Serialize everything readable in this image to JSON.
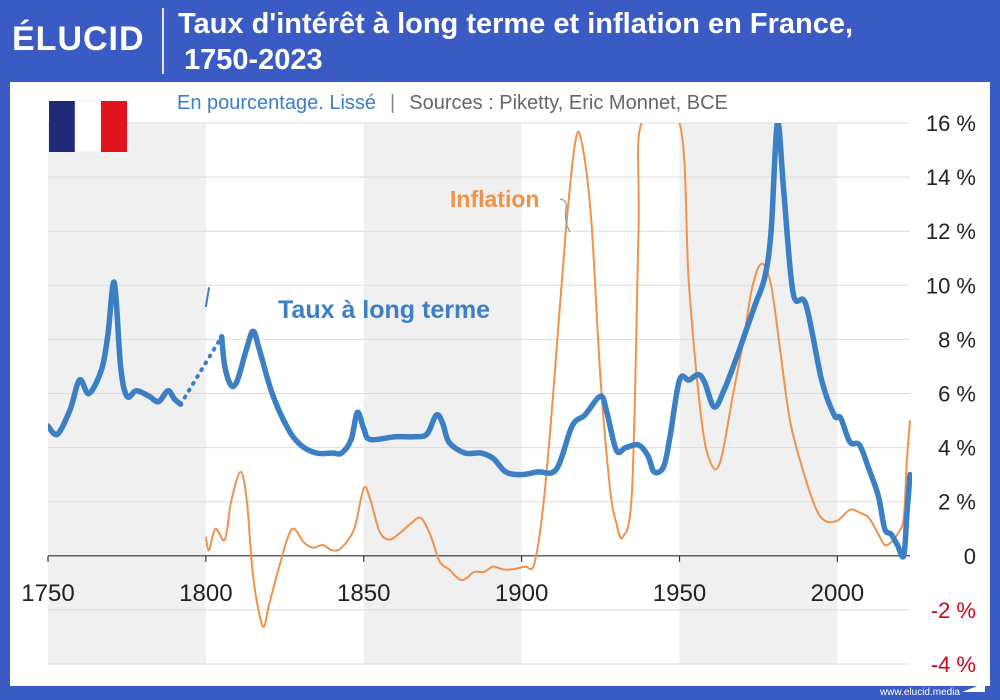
{
  "brand": {
    "logo_text": "ÉLUCID",
    "footer": "www.elucid.media"
  },
  "header": {
    "title_line1": "Taux d'intérêt à long terme et inflation en France,",
    "title_line2": "1750-2023"
  },
  "chart_data": {
    "type": "line",
    "title": "Taux d'intérêt à long terme et inflation en France, 1750-2023",
    "subtitle": "En pourcentage. Lissé",
    "subtitle_sep": "|",
    "sources": "Sources : Piketty, Eric Monnet, BCE",
    "x_ticks": [
      "1750",
      "1800",
      "1850",
      "1900",
      "1950",
      "2000"
    ],
    "y_ticks": [
      "16 %",
      "14 %",
      "12 %",
      "10 %",
      "8 %",
      "6 %",
      "4 %",
      "2 %",
      "0",
      "-2 %",
      "-4 %"
    ],
    "xlim": [
      1750,
      2023
    ],
    "ylim": [
      -4,
      16
    ],
    "y_axis_position": "right",
    "grid": true,
    "negative_tick_color": "#d0021b",
    "flag": "France",
    "series": [
      {
        "name": "Taux à long terme",
        "color": "#3b7fc4",
        "segments": [
          [
            [
              1750,
              4.8
            ],
            [
              1753,
              4.5
            ],
            [
              1757,
              5.4
            ],
            [
              1760,
              6.5
            ],
            [
              1763,
              6.0
            ],
            [
              1767,
              6.9
            ],
            [
              1769,
              8.2
            ],
            [
              1771,
              10.1
            ],
            [
              1773,
              7.0
            ],
            [
              1775,
              5.9
            ],
            [
              1778,
              6.1
            ],
            [
              1782,
              5.9
            ],
            [
              1785,
              5.7
            ],
            [
              1788,
              6.1
            ],
            [
              1790,
              5.8
            ],
            [
              1792,
              5.6
            ]
          ],
          [
            [
              1805,
              8.1
            ],
            [
              1806,
              7.0
            ],
            [
              1808,
              6.3
            ],
            [
              1810,
              6.5
            ],
            [
              1813,
              7.7
            ],
            [
              1815,
              8.3
            ],
            [
              1817,
              7.6
            ],
            [
              1821,
              6.0
            ],
            [
              1826,
              4.7
            ],
            [
              1830,
              4.1
            ],
            [
              1835,
              3.8
            ],
            [
              1840,
              3.8
            ],
            [
              1843,
              3.8
            ],
            [
              1846,
              4.3
            ],
            [
              1848,
              5.3
            ],
            [
              1850,
              4.7
            ],
            [
              1852,
              4.3
            ],
            [
              1860,
              4.4
            ],
            [
              1866,
              4.4
            ],
            [
              1870,
              4.5
            ],
            [
              1873,
              5.2
            ],
            [
              1875,
              4.9
            ],
            [
              1877,
              4.2
            ],
            [
              1882,
              3.8
            ],
            [
              1887,
              3.8
            ],
            [
              1891,
              3.6
            ],
            [
              1895,
              3.1
            ],
            [
              1900,
              3.0
            ],
            [
              1905,
              3.1
            ],
            [
              1911,
              3.2
            ],
            [
              1916,
              4.8
            ],
            [
              1920,
              5.2
            ],
            [
              1925,
              5.9
            ],
            [
              1927,
              5.3
            ],
            [
              1930,
              3.9
            ],
            [
              1933,
              4.0
            ],
            [
              1937,
              4.1
            ],
            [
              1940,
              3.7
            ],
            [
              1942,
              3.1
            ],
            [
              1945,
              3.3
            ],
            [
              1947,
              4.4
            ],
            [
              1950,
              6.5
            ],
            [
              1953,
              6.5
            ],
            [
              1956,
              6.7
            ],
            [
              1958,
              6.4
            ],
            [
              1961,
              5.5
            ],
            [
              1964,
              6.1
            ],
            [
              1968,
              7.3
            ],
            [
              1971,
              8.3
            ],
            [
              1974,
              9.3
            ],
            [
              1977,
              10.3
            ],
            [
              1979,
              12.0
            ],
            [
              1981,
              16.0
            ],
            [
              1983,
              13.5
            ],
            [
              1986,
              9.7
            ],
            [
              1990,
              9.3
            ],
            [
              1995,
              6.5
            ],
            [
              1999,
              5.2
            ],
            [
              2001,
              5.1
            ],
            [
              2004,
              4.2
            ],
            [
              2007,
              4.1
            ],
            [
              2010,
              3.2
            ],
            [
              2013,
              2.2
            ],
            [
              2015,
              1.0
            ],
            [
              2017,
              0.8
            ],
            [
              2019,
              0.4
            ],
            [
              2021,
              0.0
            ],
            [
              2022,
              1.5
            ],
            [
              2023,
              3.0
            ]
          ]
        ],
        "dotted_segment": [
          [
            1792,
            5.6
          ],
          [
            1805,
            8.1
          ]
        ]
      },
      {
        "name": "Inflation",
        "color": "#f0924a",
        "points": [
          [
            1800,
            0.7
          ],
          [
            1801,
            0.2
          ],
          [
            1803,
            1.0
          ],
          [
            1806,
            0.6
          ],
          [
            1808,
            2.0
          ],
          [
            1811,
            3.1
          ],
          [
            1813,
            2.0
          ],
          [
            1815,
            -0.8
          ],
          [
            1818,
            -2.6
          ],
          [
            1820,
            -1.8
          ],
          [
            1823,
            -0.5
          ],
          [
            1826,
            0.7
          ],
          [
            1828,
            1.0
          ],
          [
            1831,
            0.5
          ],
          [
            1834,
            0.3
          ],
          [
            1837,
            0.4
          ],
          [
            1840,
            0.2
          ],
          [
            1843,
            0.3
          ],
          [
            1847,
            1.0
          ],
          [
            1850,
            2.5
          ],
          [
            1852,
            2.1
          ],
          [
            1855,
            0.9
          ],
          [
            1858,
            0.6
          ],
          [
            1861,
            0.8
          ],
          [
            1865,
            1.2
          ],
          [
            1868,
            1.4
          ],
          [
            1871,
            0.8
          ],
          [
            1874,
            -0.2
          ],
          [
            1877,
            -0.5
          ],
          [
            1881,
            -0.9
          ],
          [
            1885,
            -0.6
          ],
          [
            1888,
            -0.6
          ],
          [
            1891,
            -0.4
          ],
          [
            1894,
            -0.5
          ],
          [
            1897,
            -0.5
          ],
          [
            1901,
            -0.4
          ],
          [
            1904,
            -0.3
          ],
          [
            1907,
            2.0
          ],
          [
            1910,
            6.0
          ],
          [
            1914,
            12.0
          ],
          [
            1917,
            15.3
          ],
          [
            1919,
            15.3
          ],
          [
            1922,
            12.5
          ],
          [
            1925,
            6.5
          ],
          [
            1928,
            2.5
          ],
          [
            1930,
            1.2
          ],
          [
            1932,
            0.7
          ],
          [
            1935,
            2.5
          ],
          [
            1937,
            12.0
          ],
          [
            1938,
            16.0
          ],
          [
            1950,
            16.0
          ],
          [
            1953,
            10.0
          ],
          [
            1957,
            5.0
          ],
          [
            1960,
            3.4
          ],
          [
            1963,
            3.5
          ],
          [
            1967,
            6.0
          ],
          [
            1970,
            7.8
          ],
          [
            1973,
            9.9
          ],
          [
            1976,
            10.8
          ],
          [
            1979,
            10.0
          ],
          [
            1982,
            7.5
          ],
          [
            1985,
            5.0
          ],
          [
            1989,
            3.2
          ],
          [
            1993,
            1.8
          ],
          [
            1996,
            1.3
          ],
          [
            2000,
            1.3
          ],
          [
            2004,
            1.7
          ],
          [
            2007,
            1.6
          ],
          [
            2010,
            1.4
          ],
          [
            2013,
            0.8
          ],
          [
            2015,
            0.4
          ],
          [
            2017,
            0.5
          ],
          [
            2019,
            0.8
          ],
          [
            2021,
            1.4
          ],
          [
            2022,
            3.5
          ],
          [
            2023,
            5.0
          ]
        ]
      }
    ],
    "annotations": [
      {
        "text": "Taux à long terme",
        "color": "#3b7fc4",
        "anchor": [
          1802,
          9.8
        ],
        "pointer": [
          [
            1801,
            10.0
          ],
          [
            1800,
            9.2
          ]
        ]
      },
      {
        "text": "Inflation",
        "color": "#f0924a",
        "anchor": [
          1890,
          15.8
        ],
        "pointer": [
          [
            1908,
            16.0
          ],
          [
            1910,
            15.0
          ],
          [
            1908,
            14.0
          ],
          [
            1910,
            13.0
          ]
        ]
      }
    ],
    "colors": {
      "panel": "#ffffff",
      "band": "#f0f0f0",
      "grid": "#dddddd",
      "axis": "#333333",
      "frame": "#3b5bc4",
      "subtitle_blue": "#3b7fc4",
      "subtitle_grey": "#666666"
    }
  }
}
